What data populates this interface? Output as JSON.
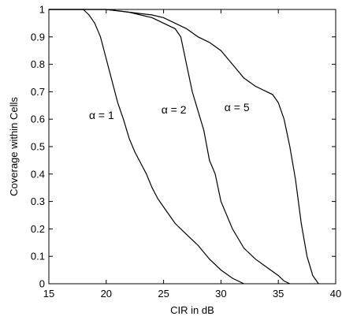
{
  "chart_data": {
    "type": "line",
    "title": "",
    "xlabel": "CIR in dB",
    "ylabel": "Coverage within Cells",
    "xlim": [
      15,
      40
    ],
    "ylim": [
      0,
      1
    ],
    "x_ticks": [
      "15",
      "20",
      "25",
      "30",
      "35",
      "40"
    ],
    "y_ticks": [
      "0",
      "0.1",
      "0.2",
      "0.3",
      "0.4",
      "0.5",
      "0.6",
      "0.7",
      "0.8",
      "0.9",
      "1"
    ],
    "grid": false,
    "series": [
      {
        "label": "α = 1",
        "x": [
          15,
          18,
          18.5,
          19,
          19.5,
          20,
          20.5,
          21,
          21.5,
          22,
          22.5,
          23,
          23.5,
          24,
          24.5,
          25,
          25.5,
          26,
          26.5,
          27,
          28,
          29,
          30,
          31,
          32
        ],
        "y": [
          1,
          1,
          0.98,
          0.95,
          0.9,
          0.82,
          0.74,
          0.66,
          0.6,
          0.53,
          0.48,
          0.44,
          0.4,
          0.35,
          0.31,
          0.28,
          0.25,
          0.22,
          0.2,
          0.18,
          0.14,
          0.09,
          0.05,
          0.02,
          0
        ]
      },
      {
        "label": "α = 2",
        "x": [
          15,
          20,
          21,
          22,
          23,
          24,
          25,
          25.5,
          26,
          26.5,
          27,
          27.5,
          28,
          28.5,
          29,
          29.5,
          30,
          31,
          32,
          33,
          34,
          35,
          35.5,
          36
        ],
        "y": [
          1,
          1,
          0.995,
          0.99,
          0.98,
          0.97,
          0.95,
          0.94,
          0.93,
          0.9,
          0.8,
          0.7,
          0.63,
          0.56,
          0.45,
          0.4,
          0.3,
          0.2,
          0.13,
          0.09,
          0.06,
          0.03,
          0.01,
          0
        ]
      },
      {
        "label": "α = 5",
        "x": [
          15,
          20,
          22,
          24,
          25,
          26,
          27,
          28,
          29,
          30,
          31,
          32,
          33,
          34,
          34.5,
          35,
          35.5,
          36,
          36.5,
          37,
          37.5,
          38,
          38.5
        ],
        "y": [
          1,
          1,
          0.99,
          0.98,
          0.97,
          0.95,
          0.93,
          0.9,
          0.88,
          0.85,
          0.8,
          0.75,
          0.72,
          0.7,
          0.69,
          0.66,
          0.6,
          0.5,
          0.38,
          0.22,
          0.1,
          0.03,
          0
        ]
      }
    ]
  }
}
